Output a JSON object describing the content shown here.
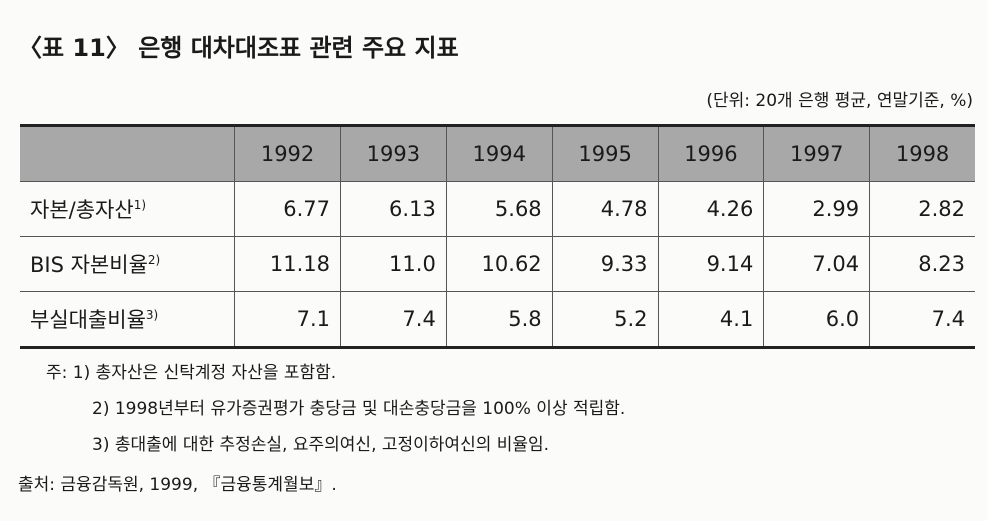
{
  "header": {
    "title": "〈표 11〉 은행 대차대조표 관련 주요 지표",
    "unit": "(단위: 20개 은행 평균, 연말기준, %)"
  },
  "table": {
    "columns": [
      "1992",
      "1993",
      "1994",
      "1995",
      "1996",
      "1997",
      "1998"
    ],
    "rows": [
      {
        "label": "자본/총자산",
        "note": "1)",
        "values": [
          "6.77",
          "6.13",
          "5.68",
          "4.78",
          "4.26",
          "2.99",
          "2.82"
        ]
      },
      {
        "label": "BIS 자본비율",
        "note": "2)",
        "values": [
          "11.18",
          "11.0",
          "10.62",
          "9.33",
          "9.14",
          "7.04",
          "8.23"
        ]
      },
      {
        "label": "부실대출비율",
        "note": "3)",
        "values": [
          "7.1",
          "7.4",
          "5.8",
          "5.2",
          "4.1",
          "6.0",
          "7.4"
        ]
      }
    ]
  },
  "notes": {
    "label": "주:",
    "items": [
      "1) 총자산은 신탁계정 자산을 포함함.",
      "2) 1998년부터 유가증권평가 충당금 및 대손충당금을 100% 이상 적립함.",
      "3) 총대출에 대한 추정손실, 요주의여신, 고정이하여신의 비율임."
    ]
  },
  "source": {
    "label": "출처:",
    "text": "금융감독원, 1999, 『금융통계월보』."
  }
}
